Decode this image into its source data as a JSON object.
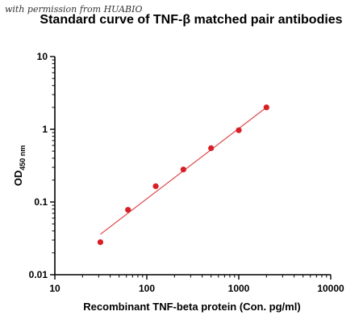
{
  "watermark": "with permission from HUABIO",
  "chart_data": {
    "type": "scatter",
    "title": "Standard curve of TNF-β matched pair antibodies",
    "xlabel": "Recombinant TNF-beta protein (Con. pg/ml)",
    "ylabel": {
      "main": "OD",
      "subscript": "450 nm"
    },
    "xscale": "log",
    "yscale": "log",
    "xlim": [
      10,
      10000
    ],
    "ylim": [
      0.01,
      10
    ],
    "x_ticks": [
      "10",
      "100",
      "1000",
      "10000"
    ],
    "y_ticks": [
      "0.01",
      "0.1",
      "1",
      "10"
    ],
    "x": [
      31.25,
      62.5,
      125,
      250,
      500,
      1000,
      2000
    ],
    "y": [
      0.028,
      0.078,
      0.165,
      0.28,
      0.55,
      0.97,
      2.0
    ],
    "fit_line": {
      "x": [
        31.25,
        2000
      ],
      "y": [
        0.036,
        2.0
      ]
    },
    "point_color": "#d81f26",
    "line_color": "#e0484a",
    "grid": false
  }
}
